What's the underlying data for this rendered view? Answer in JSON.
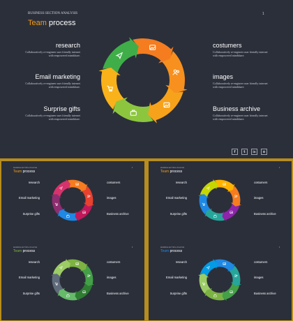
{
  "header": {
    "overline": "BUSINESS SECTION ANALYSIS",
    "title_accent": "Team",
    "title_rest": "process",
    "page_number": "1"
  },
  "items": {
    "research": {
      "title": "research",
      "desc1": "Collaboratively re-engineer user friendly internet",
      "desc2": "with empowered mindshare."
    },
    "email": {
      "title": "Email marketing",
      "desc1": "Collaboratively re-engineer user friendly internet",
      "desc2": "with empowered mindshare."
    },
    "surprise": {
      "title": "Surprise gifts",
      "desc1": "Collaboratively re-engineer user friendly internet",
      "desc2": "with empowered mindshare."
    },
    "costumers": {
      "title": "costumers",
      "desc1": "Collaboratively re-engineer user friendly internet",
      "desc2": "with empowered mindshare."
    },
    "images": {
      "title": "images",
      "desc1": "Collaboratively re-engineer user friendly internet",
      "desc2": "with empowered mindshare."
    },
    "archive": {
      "title": "Business archive",
      "desc1": "Collaboratively re-engineer user friendly internet",
      "desc2": "with empowered mindshare."
    }
  },
  "social": {
    "facebook": "f",
    "twitter": "t",
    "linkedin": "in",
    "instagram": "o"
  },
  "icons": [
    "image-icon",
    "users-icon",
    "photo-icon",
    "briefcase-icon",
    "cart-icon",
    "send-icon"
  ],
  "palettes": {
    "main": [
      "#f57c1f",
      "#f7901e",
      "#f7a21b",
      "#8cc63f",
      "#f9b21a",
      "#3fae49"
    ],
    "thumb1": [
      "#f57c1f",
      "#e8412f",
      "#c2185b",
      "#1e88e5",
      "#8e2d6f",
      "#d6336c"
    ],
    "thumb2": [
      "#ffb300",
      "#f57c1f",
      "#8e24aa",
      "#26a69a",
      "#1e88e5",
      "#c6d600"
    ],
    "thumb3": [
      "#7cb342",
      "#43a047",
      "#2e7d32",
      "#66bb6a",
      "#5f6b7a",
      "#9ccc65"
    ],
    "thumb4": [
      "#1e88e5",
      "#26a69a",
      "#43a047",
      "#7cb342",
      "#9ccc65",
      "#039be5"
    ]
  }
}
